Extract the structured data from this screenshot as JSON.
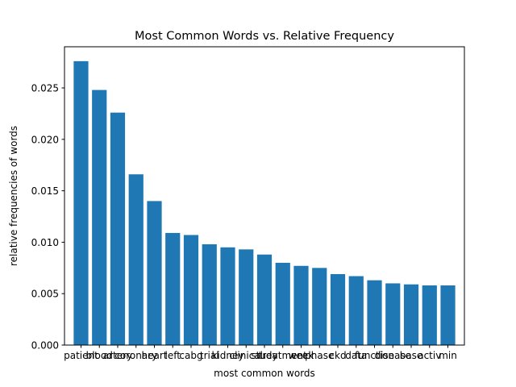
{
  "chart_data": {
    "type": "bar",
    "title": "Most Common Words vs. Relative Frequency",
    "xlabel": "most common words",
    "ylabel": "relative frequencies of words",
    "categories": [
      "patient",
      "blood",
      "artery",
      "coronary",
      "heart",
      "left",
      "cabg",
      "trial",
      "kidney",
      "clinical",
      "study",
      "treatment",
      "week",
      "phase",
      "ckd",
      "data",
      "function",
      "disease",
      "base",
      "activ",
      "min"
    ],
    "values": [
      0.0276,
      0.0248,
      0.0226,
      0.0166,
      0.014,
      0.0109,
      0.0107,
      0.0098,
      0.0095,
      0.0093,
      0.0088,
      0.008,
      0.0077,
      0.0075,
      0.0069,
      0.0067,
      0.0063,
      0.006,
      0.0059,
      0.0058,
      0.0058
    ],
    "ylim": [
      0,
      0.029
    ],
    "yticks": [
      "0.000",
      "0.005",
      "0.010",
      "0.015",
      "0.020",
      "0.025"
    ],
    "ytick_values": [
      0,
      0.005,
      0.01,
      0.015,
      0.02,
      0.025
    ],
    "bar_color": "#1f77b4",
    "grid": false
  }
}
